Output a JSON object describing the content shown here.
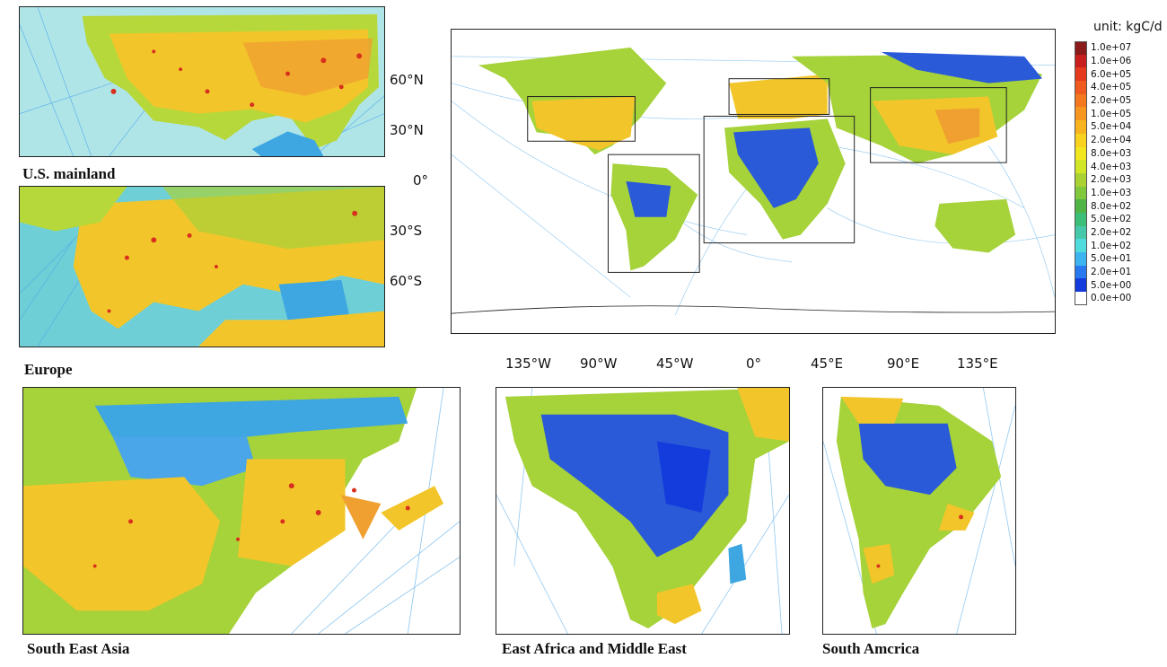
{
  "main_map": {
    "unit_label": "unit: kgC/d",
    "lat_labels": [
      "60°N",
      "30°N",
      "0°",
      "30°S",
      "60°S"
    ],
    "lon_labels": [
      "135°W",
      "90°W",
      "45°W",
      "0°",
      "45°E",
      "90°E",
      "135°E"
    ]
  },
  "legend": {
    "items": [
      {
        "label": "1.0e+07",
        "color": "#8b1a1a"
      },
      {
        "label": "1.0e+06",
        "color": "#c81e1e"
      },
      {
        "label": "6.0e+05",
        "color": "#e63a1e"
      },
      {
        "label": "4.0e+05",
        "color": "#f05a1e"
      },
      {
        "label": "2.0e+05",
        "color": "#f4781e"
      },
      {
        "label": "1.0e+05",
        "color": "#f7961e"
      },
      {
        "label": "5.0e+04",
        "color": "#f8b41e"
      },
      {
        "label": "2.0e+04",
        "color": "#f8d21e"
      },
      {
        "label": "8.0e+03",
        "color": "#f2e61e"
      },
      {
        "label": "4.0e+03",
        "color": "#d2e628"
      },
      {
        "label": "2.0e+03",
        "color": "#aad232"
      },
      {
        "label": "1.0e+03",
        "color": "#82c83c"
      },
      {
        "label": "8.0e+02",
        "color": "#50b446"
      },
      {
        "label": "5.0e+02",
        "color": "#3cbe78"
      },
      {
        "label": "2.0e+02",
        "color": "#46c8aa"
      },
      {
        "label": "1.0e+02",
        "color": "#50dcdc"
      },
      {
        "label": "5.0e+01",
        "color": "#3cb4f0"
      },
      {
        "label": "2.0e+01",
        "color": "#2878f0"
      },
      {
        "label": "5.0e+00",
        "color": "#143cdc"
      },
      {
        "label": "0.0e+00",
        "color": "#ffffff"
      }
    ]
  },
  "regions": {
    "us": "U.S. mainland",
    "europe": "Europe",
    "sea": "South East Asia",
    "africa": "East Africa and Middle East",
    "samerica": "South Amcrica"
  },
  "colors": {
    "land_high": "#f2c62a",
    "land_mid": "#a6d23a",
    "land_low": "#2a5ad8",
    "ocean_lanes": "#4aa6e8",
    "ocean_bg": "#ffffff",
    "hotspot": "#d8301e"
  }
}
